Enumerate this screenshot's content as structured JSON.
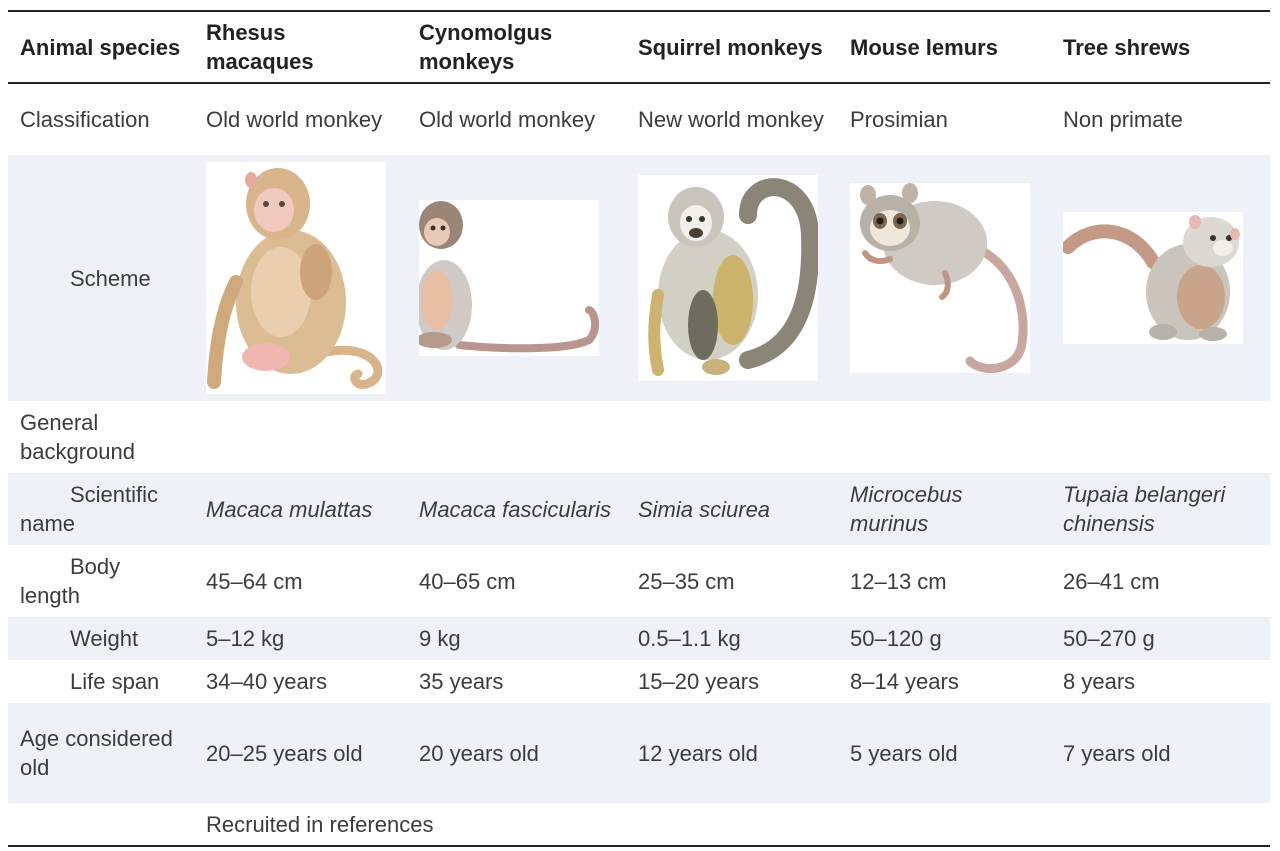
{
  "header": [
    "Animal species",
    "Rhesus macaques",
    "Cynomolgus monkeys",
    "Squirrel monkeys",
    "Mouse lemurs",
    "Tree shrews"
  ],
  "rows": {
    "classification": {
      "label": "Classification",
      "values": [
        "Old world monkey",
        "Old world monkey",
        "New world monkey",
        "Prosimian",
        "Non primate"
      ]
    },
    "scheme": {
      "label": "Scheme",
      "images": [
        "rhesus-macaque-illustration",
        "cynomolgus-monkey-illustration",
        "squirrel-monkey-illustration",
        "mouse-lemur-illustration",
        "tree-shrew-illustration"
      ]
    },
    "general_background": {
      "label": "General background"
    },
    "scientific_name": {
      "label": "Scientific name",
      "values": [
        "Macaca mulattas",
        "Macaca fascicularis",
        "Simia sciurea",
        "Microcebus murinus",
        "Tupaia belangeri chinensis"
      ]
    },
    "body_length": {
      "label": "Body length",
      "values": [
        "45–64 cm",
        "40–65 cm",
        "25–35 cm",
        "12–13 cm",
        "26–41 cm"
      ]
    },
    "weight": {
      "label": "Weight",
      "values": [
        "5–12 kg",
        "9 kg",
        "0.5–1.1 kg",
        "50–120 g",
        "50–270 g"
      ]
    },
    "life_span": {
      "label": "Life span",
      "values": [
        "34–40 years",
        "35 years",
        "15–20 years",
        "8–14 years",
        "8 years"
      ]
    },
    "age_old": {
      "label": "Age considered old",
      "values": [
        "20–25 years old",
        "20 years old",
        "12 years old",
        "5 years old",
        "7 years old"
      ]
    },
    "recruited": {
      "label": "Recruited in references"
    }
  },
  "colors": {
    "row_shade": "#eef2f8",
    "rule": "#222222",
    "fur_tan": "#d9b88e",
    "fur_grey": "#bdb9b2",
    "tail_pink": "#c9a79f"
  }
}
